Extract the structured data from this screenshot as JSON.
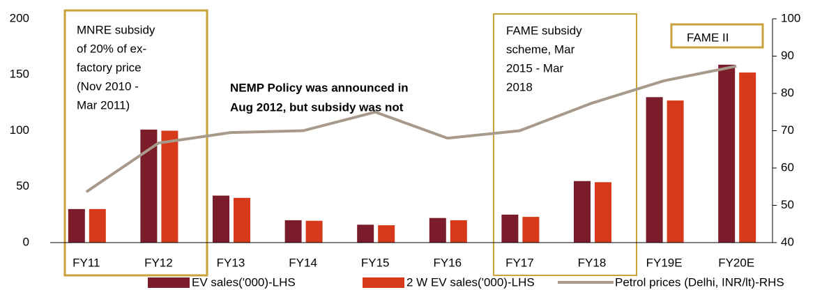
{
  "chart_data": {
    "type": "bar",
    "categories": [
      "FY11",
      "FY12",
      "FY13",
      "FY14",
      "FY15",
      "FY16",
      "FY17",
      "FY18",
      "FY19E",
      "FY20E"
    ],
    "series": [
      {
        "name": "EV sales('000)-LHS",
        "color": "#7b1c2b",
        "values": [
          30,
          101,
          42,
          20,
          16,
          22,
          25,
          55,
          130,
          159
        ]
      },
      {
        "name": "2 W EV sales('000)-LHS",
        "color": "#d63a1a",
        "values": [
          30,
          100,
          40,
          19.5,
          15.5,
          20,
          23,
          54,
          127,
          152
        ]
      },
      {
        "name": "Petrol prices (Delhi, INR/lt)-RHS",
        "color": "#a89a8a",
        "type": "line",
        "axis": "y2",
        "values": [
          53.6,
          66.7,
          69.5,
          70,
          75,
          68,
          70,
          77.4,
          83.4,
          87.3
        ]
      }
    ],
    "ylim": [
      0,
      200
    ],
    "yticks": [
      0,
      50,
      100,
      150,
      200
    ],
    "y2lim": [
      40,
      100
    ],
    "y2ticks": [
      40,
      50,
      60,
      70,
      80,
      90,
      100
    ],
    "annotations": [
      {
        "lines": [
          "MNRE subsidy",
          "of 20% of ex-",
          "factory price",
          "(Nov 2010 -",
          "Mar 2011)"
        ]
      },
      {
        "lines": [
          "NEMP Policy was announced in",
          "Aug 2012, but subsidy was not"
        ]
      },
      {
        "lines": [
          "FAME subsidy",
          "scheme, Mar",
          "2015 - Mar",
          "2018"
        ]
      },
      {
        "lines": [
          "FAME II"
        ]
      }
    ]
  }
}
